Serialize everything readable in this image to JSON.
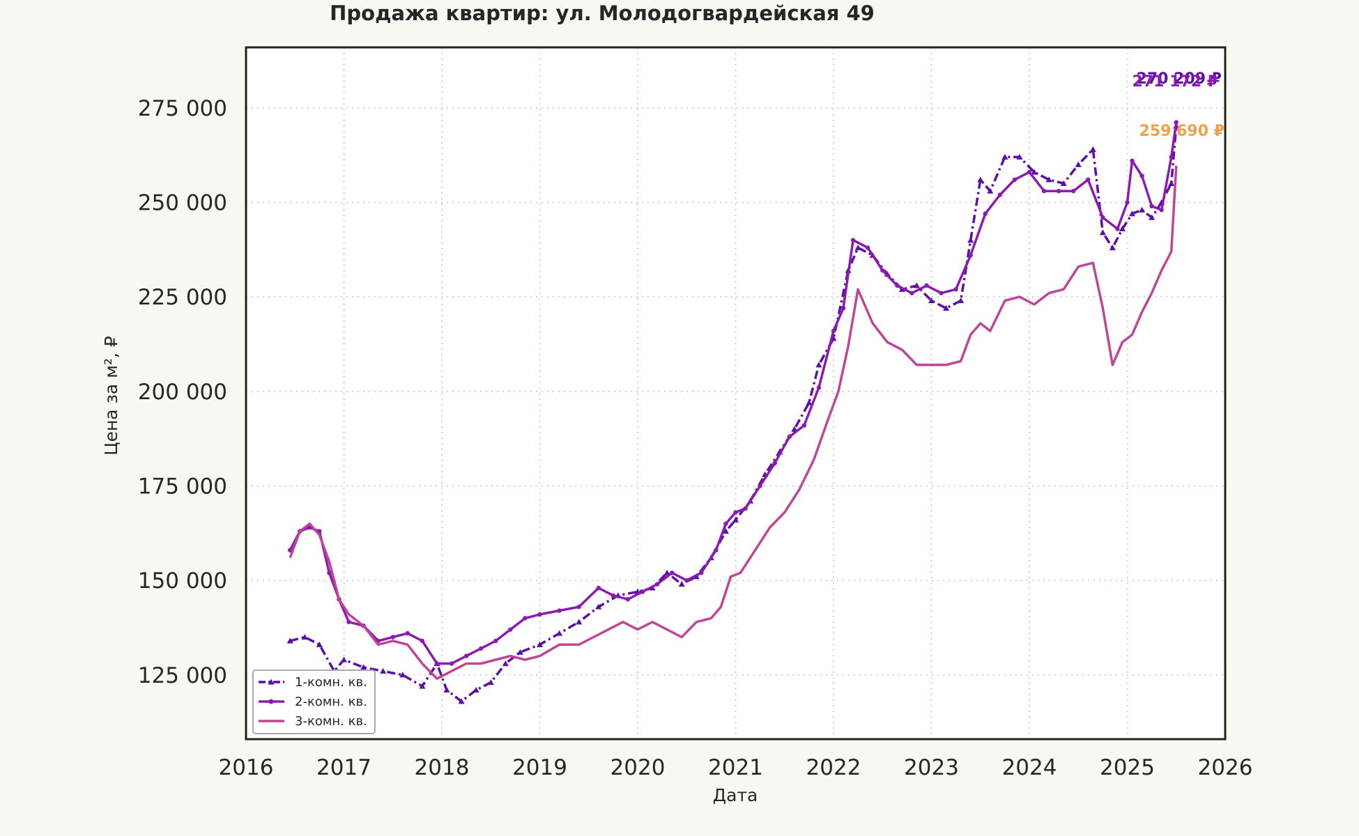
{
  "chart_data": {
    "type": "line",
    "title": "Продажа квартир: ул. Молодогвардейская 49",
    "xlabel": "Дата",
    "ylabel": "Цена за м², ₽",
    "xlim": [
      2016,
      2026
    ],
    "ylim": [
      108000,
      291000
    ],
    "x_ticks": [
      "2016",
      "2017",
      "2018",
      "2019",
      "2020",
      "2021",
      "2022",
      "2023",
      "2024",
      "2025",
      "2026"
    ],
    "y_ticks": [
      125000,
      150000,
      175000,
      200000,
      225000,
      250000,
      275000
    ],
    "y_tick_labels": [
      "125 000",
      "150 000",
      "175 000",
      "200 000",
      "225 000",
      "250 000",
      "275 000"
    ],
    "grid": true,
    "legend_position": "bottom-left",
    "series": [
      {
        "name": "1-комн. кв.",
        "color": "#5a0fa8",
        "style": "dashdot-triangle",
        "end_label": "270 209 ₽",
        "end_value": 270209,
        "points": [
          [
            2016.45,
            134000
          ],
          [
            2016.6,
            135000
          ],
          [
            2016.75,
            133000
          ],
          [
            2016.9,
            126000
          ],
          [
            2017.0,
            129000
          ],
          [
            2017.2,
            127000
          ],
          [
            2017.4,
            126000
          ],
          [
            2017.6,
            125000
          ],
          [
            2017.8,
            122000
          ],
          [
            2017.95,
            128000
          ],
          [
            2018.05,
            121000
          ],
          [
            2018.2,
            118000
          ],
          [
            2018.35,
            121000
          ],
          [
            2018.5,
            123000
          ],
          [
            2018.65,
            128000
          ],
          [
            2018.8,
            131000
          ],
          [
            2019.0,
            133000
          ],
          [
            2019.2,
            136000
          ],
          [
            2019.4,
            139000
          ],
          [
            2019.6,
            143000
          ],
          [
            2019.8,
            146000
          ],
          [
            2020.0,
            147000
          ],
          [
            2020.15,
            148000
          ],
          [
            2020.3,
            152000
          ],
          [
            2020.45,
            149000
          ],
          [
            2020.6,
            151000
          ],
          [
            2020.75,
            156000
          ],
          [
            2020.9,
            163000
          ],
          [
            2021.0,
            166000
          ],
          [
            2021.15,
            171000
          ],
          [
            2021.3,
            178000
          ],
          [
            2021.45,
            184000
          ],
          [
            2021.6,
            190000
          ],
          [
            2021.75,
            197000
          ],
          [
            2021.85,
            207000
          ],
          [
            2022.0,
            214000
          ],
          [
            2022.15,
            232000
          ],
          [
            2022.25,
            238000
          ],
          [
            2022.4,
            236000
          ],
          [
            2022.55,
            231000
          ],
          [
            2022.7,
            227000
          ],
          [
            2022.85,
            228000
          ],
          [
            2023.0,
            224000
          ],
          [
            2023.15,
            222000
          ],
          [
            2023.3,
            224000
          ],
          [
            2023.4,
            240000
          ],
          [
            2023.5,
            256000
          ],
          [
            2023.6,
            253000
          ],
          [
            2023.75,
            262000
          ],
          [
            2023.9,
            262000
          ],
          [
            2024.05,
            258000
          ],
          [
            2024.2,
            256000
          ],
          [
            2024.35,
            255000
          ],
          [
            2024.5,
            260000
          ],
          [
            2024.65,
            264000
          ],
          [
            2024.75,
            242000
          ],
          [
            2024.85,
            238000
          ],
          [
            2024.95,
            243000
          ],
          [
            2025.05,
            247000
          ],
          [
            2025.15,
            248000
          ],
          [
            2025.25,
            246000
          ],
          [
            2025.35,
            250000
          ],
          [
            2025.45,
            255000
          ],
          [
            2025.5,
            270209
          ]
        ]
      },
      {
        "name": "2-комн. кв.",
        "color": "#8b1bb0",
        "style": "solid-dot",
        "end_label": "271 172 ₽",
        "end_value": 271172,
        "points": [
          [
            2016.45,
            158000
          ],
          [
            2016.55,
            163000
          ],
          [
            2016.65,
            164000
          ],
          [
            2016.75,
            163000
          ],
          [
            2016.85,
            152000
          ],
          [
            2016.95,
            145000
          ],
          [
            2017.05,
            139000
          ],
          [
            2017.2,
            138000
          ],
          [
            2017.35,
            134000
          ],
          [
            2017.5,
            135000
          ],
          [
            2017.65,
            136000
          ],
          [
            2017.8,
            134000
          ],
          [
            2017.95,
            128000
          ],
          [
            2018.1,
            128000
          ],
          [
            2018.25,
            130000
          ],
          [
            2018.4,
            132000
          ],
          [
            2018.55,
            134000
          ],
          [
            2018.7,
            137000
          ],
          [
            2018.85,
            140000
          ],
          [
            2019.0,
            141000
          ],
          [
            2019.2,
            142000
          ],
          [
            2019.4,
            143000
          ],
          [
            2019.6,
            148000
          ],
          [
            2019.75,
            146000
          ],
          [
            2019.9,
            145000
          ],
          [
            2020.05,
            147000
          ],
          [
            2020.2,
            149000
          ],
          [
            2020.35,
            152000
          ],
          [
            2020.5,
            150000
          ],
          [
            2020.65,
            152000
          ],
          [
            2020.8,
            158000
          ],
          [
            2020.9,
            165000
          ],
          [
            2021.0,
            168000
          ],
          [
            2021.1,
            169000
          ],
          [
            2021.25,
            175000
          ],
          [
            2021.4,
            181000
          ],
          [
            2021.55,
            188000
          ],
          [
            2021.7,
            191000
          ],
          [
            2021.85,
            201000
          ],
          [
            2022.0,
            216000
          ],
          [
            2022.1,
            222000
          ],
          [
            2022.2,
            240000
          ],
          [
            2022.35,
            238000
          ],
          [
            2022.5,
            232000
          ],
          [
            2022.65,
            228000
          ],
          [
            2022.8,
            226000
          ],
          [
            2022.95,
            228000
          ],
          [
            2023.1,
            226000
          ],
          [
            2023.25,
            227000
          ],
          [
            2023.4,
            236000
          ],
          [
            2023.55,
            247000
          ],
          [
            2023.7,
            252000
          ],
          [
            2023.85,
            256000
          ],
          [
            2024.0,
            258000
          ],
          [
            2024.15,
            253000
          ],
          [
            2024.3,
            253000
          ],
          [
            2024.45,
            253000
          ],
          [
            2024.6,
            256000
          ],
          [
            2024.75,
            246000
          ],
          [
            2024.9,
            243000
          ],
          [
            2025.0,
            250000
          ],
          [
            2025.05,
            261000
          ],
          [
            2025.15,
            257000
          ],
          [
            2025.25,
            249000
          ],
          [
            2025.35,
            248000
          ],
          [
            2025.45,
            262000
          ],
          [
            2025.5,
            271172
          ]
        ]
      },
      {
        "name": "3-комн. кв.",
        "color": "#bf4597",
        "style": "solid",
        "end_label": "259 690 ₽",
        "end_value": 259690,
        "end_label_color": "#f0a04b",
        "points": [
          [
            2016.45,
            156000
          ],
          [
            2016.55,
            163000
          ],
          [
            2016.65,
            165000
          ],
          [
            2016.75,
            162000
          ],
          [
            2016.85,
            155000
          ],
          [
            2016.95,
            145000
          ],
          [
            2017.05,
            141000
          ],
          [
            2017.2,
            138000
          ],
          [
            2017.35,
            133000
          ],
          [
            2017.5,
            134000
          ],
          [
            2017.65,
            133000
          ],
          [
            2017.8,
            128000
          ],
          [
            2017.95,
            124000
          ],
          [
            2018.1,
            126000
          ],
          [
            2018.25,
            128000
          ],
          [
            2018.4,
            128000
          ],
          [
            2018.55,
            129000
          ],
          [
            2018.7,
            130000
          ],
          [
            2018.85,
            129000
          ],
          [
            2019.0,
            130000
          ],
          [
            2019.2,
            133000
          ],
          [
            2019.4,
            133000
          ],
          [
            2019.55,
            135000
          ],
          [
            2019.7,
            137000
          ],
          [
            2019.85,
            139000
          ],
          [
            2020.0,
            137000
          ],
          [
            2020.15,
            139000
          ],
          [
            2020.3,
            137000
          ],
          [
            2020.45,
            135000
          ],
          [
            2020.6,
            139000
          ],
          [
            2020.75,
            140000
          ],
          [
            2020.85,
            143000
          ],
          [
            2020.95,
            151000
          ],
          [
            2021.05,
            152000
          ],
          [
            2021.2,
            158000
          ],
          [
            2021.35,
            164000
          ],
          [
            2021.5,
            168000
          ],
          [
            2021.65,
            174000
          ],
          [
            2021.8,
            182000
          ],
          [
            2021.95,
            193000
          ],
          [
            2022.05,
            200000
          ],
          [
            2022.15,
            212000
          ],
          [
            2022.25,
            227000
          ],
          [
            2022.4,
            218000
          ],
          [
            2022.55,
            213000
          ],
          [
            2022.7,
            211000
          ],
          [
            2022.85,
            207000
          ],
          [
            2023.0,
            207000
          ],
          [
            2023.15,
            207000
          ],
          [
            2023.3,
            208000
          ],
          [
            2023.4,
            215000
          ],
          [
            2023.5,
            218000
          ],
          [
            2023.6,
            216000
          ],
          [
            2023.75,
            224000
          ],
          [
            2023.9,
            225000
          ],
          [
            2024.05,
            223000
          ],
          [
            2024.2,
            226000
          ],
          [
            2024.35,
            227000
          ],
          [
            2024.5,
            233000
          ],
          [
            2024.65,
            234000
          ],
          [
            2024.75,
            222000
          ],
          [
            2024.85,
            207000
          ],
          [
            2024.95,
            213000
          ],
          [
            2025.05,
            215000
          ],
          [
            2025.15,
            221000
          ],
          [
            2025.25,
            226000
          ],
          [
            2025.35,
            232000
          ],
          [
            2025.45,
            237000
          ],
          [
            2025.5,
            259690
          ]
        ]
      }
    ]
  }
}
